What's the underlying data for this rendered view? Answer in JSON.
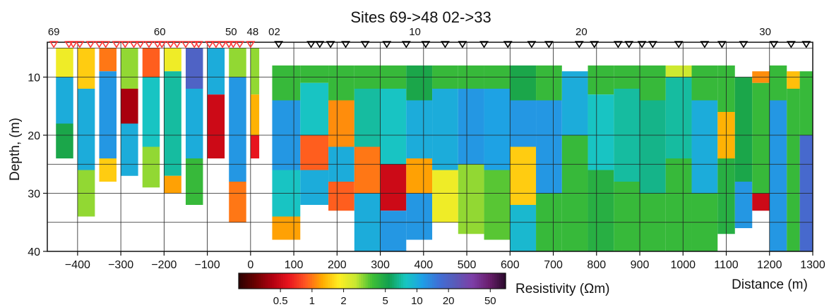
{
  "chart_data": {
    "type": "heatmap",
    "title": "Sites 69->48 02->33",
    "xlabel": "Distance (m)",
    "ylabel": "Depth, (m)",
    "xlim": [
      -470,
      1300
    ],
    "ylim": [
      4,
      40
    ],
    "x_ticks": [
      -400,
      -300,
      -200,
      -100,
      0,
      100,
      200,
      300,
      400,
      500,
      600,
      700,
      800,
      900,
      1000,
      1100,
      1200,
      1300
    ],
    "y_ticks": [
      10,
      20,
      30,
      40
    ],
    "h_gridlines": [
      5,
      25,
      35
    ],
    "colorbar": {
      "label": "Resistivity (Ωm)",
      "scale": "log",
      "range": [
        0.2,
        70
      ],
      "ticks": [
        0.5,
        1,
        2,
        5,
        10,
        20,
        50
      ],
      "colors": [
        "#2a0000",
        "#6b0000",
        "#b00010",
        "#e8141e",
        "#ff5522",
        "#ffaa00",
        "#ffee22",
        "#c8e832",
        "#3fbf35",
        "#12a050",
        "#17c7c0",
        "#1ea0e6",
        "#3f6fd6",
        "#5a5ab8",
        "#7d3fa8",
        "#6a1f6e",
        "#2a0a2a"
      ]
    },
    "site_groups": [
      {
        "name": "Sites 69->48",
        "marker_color": "#ff3a3a",
        "labels": [
          {
            "text": "69",
            "x": -455
          },
          {
            "text": "60",
            "x": -210
          },
          {
            "text": "50",
            "x": -45
          },
          {
            "text": "48",
            "x": 5
          }
        ],
        "x_positions": [
          -455,
          -420,
          -410,
          -395,
          -370,
          -350,
          -335,
          -310,
          -290,
          -270,
          -255,
          -235,
          -215,
          -205,
          -185,
          -170,
          -150,
          -130,
          -120,
          -95,
          -80,
          -65,
          -50,
          -40,
          -25,
          0
        ]
      },
      {
        "name": "Sites 02->33",
        "marker_color": "#000000",
        "labels": [
          {
            "text": "02",
            "x": 55
          },
          {
            "text": "10",
            "x": 380
          },
          {
            "text": "20",
            "x": 765
          },
          {
            "text": "30",
            "x": 1190
          }
        ],
        "x_positions": [
          65,
          140,
          160,
          185,
          220,
          265,
          315,
          360,
          405,
          450,
          490,
          540,
          595,
          650,
          690,
          760,
          795,
          850,
          875,
          905,
          930,
          990,
          1050,
          1090,
          1140,
          1210,
          1250,
          1285
        ]
      }
    ],
    "column_depth_ranges": [
      {
        "x": -450,
        "width": 40,
        "top": 5,
        "bottom": 24
      },
      {
        "x": -400,
        "width": 40,
        "top": 5,
        "bottom": 34
      },
      {
        "x": -350,
        "width": 40,
        "top": 5,
        "bottom": 28
      },
      {
        "x": -300,
        "width": 40,
        "top": 5,
        "bottom": 27
      },
      {
        "x": -250,
        "width": 40,
        "top": 5,
        "bottom": 29
      },
      {
        "x": -200,
        "width": 40,
        "top": 5,
        "bottom": 30
      },
      {
        "x": -150,
        "width": 40,
        "top": 5,
        "bottom": 32
      },
      {
        "x": -100,
        "width": 40,
        "top": 5,
        "bottom": 24
      },
      {
        "x": -50,
        "width": 40,
        "top": 5,
        "bottom": 35
      },
      {
        "x": 0,
        "width": 20,
        "top": 5,
        "bottom": 24
      },
      {
        "x": 50,
        "width": 65,
        "top": 8,
        "bottom": 38
      },
      {
        "x": 115,
        "width": 65,
        "top": 8,
        "bottom": 32
      },
      {
        "x": 180,
        "width": 60,
        "top": 8,
        "bottom": 33
      },
      {
        "x": 240,
        "width": 60,
        "top": 8,
        "bottom": 40
      },
      {
        "x": 300,
        "width": 60,
        "top": 8,
        "bottom": 40
      },
      {
        "x": 360,
        "width": 60,
        "top": 8,
        "bottom": 38
      },
      {
        "x": 420,
        "width": 60,
        "top": 8,
        "bottom": 35
      },
      {
        "x": 480,
        "width": 60,
        "top": 8,
        "bottom": 37
      },
      {
        "x": 540,
        "width": 60,
        "top": 8,
        "bottom": 38
      },
      {
        "x": 600,
        "width": 60,
        "top": 8,
        "bottom": 40
      },
      {
        "x": 660,
        "width": 60,
        "top": 8,
        "bottom": 40
      },
      {
        "x": 720,
        "width": 60,
        "top": 9,
        "bottom": 40
      },
      {
        "x": 780,
        "width": 60,
        "top": 8,
        "bottom": 40
      },
      {
        "x": 840,
        "width": 60,
        "top": 8,
        "bottom": 40
      },
      {
        "x": 900,
        "width": 60,
        "top": 8,
        "bottom": 40
      },
      {
        "x": 960,
        "width": 60,
        "top": 8,
        "bottom": 40
      },
      {
        "x": 1020,
        "width": 60,
        "top": 8,
        "bottom": 40
      },
      {
        "x": 1080,
        "width": 40,
        "top": 8,
        "bottom": 37
      },
      {
        "x": 1120,
        "width": 40,
        "top": 10,
        "bottom": 36
      },
      {
        "x": 1160,
        "width": 40,
        "top": 9,
        "bottom": 33
      },
      {
        "x": 1200,
        "width": 40,
        "top": 8,
        "bottom": 40
      },
      {
        "x": 1240,
        "width": 30,
        "top": 9,
        "bottom": 40
      },
      {
        "x": 1270,
        "width": 30,
        "top": 9,
        "bottom": 40
      }
    ],
    "cells": [
      [
        -450,
        40,
        5,
        10,
        2
      ],
      [
        -450,
        40,
        10,
        18,
        10
      ],
      [
        -450,
        40,
        18,
        24,
        5
      ],
      [
        -400,
        40,
        5,
        12,
        1.5
      ],
      [
        -400,
        40,
        12,
        26,
        10
      ],
      [
        -400,
        40,
        26,
        34,
        3
      ],
      [
        -350,
        40,
        5,
        9,
        1
      ],
      [
        -350,
        40,
        9,
        24,
        12
      ],
      [
        -350,
        40,
        24,
        28,
        1.5
      ],
      [
        -300,
        40,
        5,
        12,
        3
      ],
      [
        -300,
        40,
        12,
        18,
        0.4
      ],
      [
        -300,
        40,
        18,
        27,
        10
      ],
      [
        -250,
        40,
        5,
        10,
        0.9
      ],
      [
        -250,
        40,
        10,
        22,
        8
      ],
      [
        -250,
        40,
        22,
        29,
        3
      ],
      [
        -200,
        40,
        5,
        9,
        2
      ],
      [
        -200,
        40,
        9,
        27,
        7
      ],
      [
        -200,
        40,
        27,
        30,
        1.2
      ],
      [
        -150,
        40,
        5,
        12,
        20
      ],
      [
        -150,
        40,
        12,
        24,
        10
      ],
      [
        -150,
        40,
        24,
        32,
        4
      ],
      [
        -100,
        40,
        5,
        13,
        10
      ],
      [
        -100,
        40,
        13,
        24,
        0.5
      ],
      [
        -50,
        40,
        5,
        10,
        3
      ],
      [
        -50,
        40,
        10,
        28,
        12
      ],
      [
        -50,
        40,
        28,
        35,
        1
      ],
      [
        0,
        20,
        5,
        13,
        3
      ],
      [
        0,
        20,
        13,
        20,
        1.3
      ],
      [
        0,
        20,
        20,
        24,
        0.6
      ],
      [
        50,
        65,
        8,
        14,
        4
      ],
      [
        50,
        65,
        14,
        26,
        12
      ],
      [
        50,
        65,
        26,
        34,
        8
      ],
      [
        50,
        65,
        34,
        38,
        1.2
      ],
      [
        115,
        65,
        8,
        11,
        4
      ],
      [
        115,
        65,
        11,
        20,
        8
      ],
      [
        115,
        65,
        20,
        26,
        0.9
      ],
      [
        115,
        65,
        26,
        32,
        10
      ],
      [
        180,
        60,
        8,
        14,
        4
      ],
      [
        180,
        60,
        14,
        22,
        1.1
      ],
      [
        180,
        60,
        22,
        28,
        10
      ],
      [
        180,
        60,
        28,
        33,
        0.9
      ],
      [
        240,
        60,
        8,
        12,
        4
      ],
      [
        240,
        60,
        12,
        22,
        7
      ],
      [
        240,
        60,
        22,
        30,
        1
      ],
      [
        240,
        60,
        30,
        40,
        10
      ],
      [
        300,
        60,
        8,
        12,
        4
      ],
      [
        300,
        60,
        12,
        25,
        8
      ],
      [
        300,
        60,
        25,
        33,
        0.5
      ],
      [
        300,
        60,
        33,
        40,
        12
      ],
      [
        360,
        60,
        8,
        14,
        5
      ],
      [
        360,
        60,
        14,
        24,
        10
      ],
      [
        360,
        60,
        24,
        30,
        1.2
      ],
      [
        360,
        60,
        30,
        38,
        12
      ],
      [
        420,
        60,
        8,
        12,
        4
      ],
      [
        420,
        60,
        12,
        26,
        10
      ],
      [
        420,
        60,
        26,
        35,
        2
      ],
      [
        480,
        60,
        8,
        12,
        4
      ],
      [
        480,
        60,
        12,
        25,
        12
      ],
      [
        480,
        60,
        25,
        37,
        3
      ],
      [
        540,
        60,
        8,
        12,
        4
      ],
      [
        540,
        60,
        12,
        26,
        11
      ],
      [
        540,
        60,
        26,
        38,
        3.5
      ],
      [
        600,
        60,
        8,
        14,
        5
      ],
      [
        600,
        60,
        14,
        22,
        12
      ],
      [
        600,
        60,
        22,
        32,
        1.5
      ],
      [
        600,
        60,
        32,
        40,
        9
      ],
      [
        660,
        60,
        8,
        14,
        4
      ],
      [
        660,
        60,
        14,
        30,
        12
      ],
      [
        660,
        60,
        30,
        40,
        4
      ],
      [
        720,
        60,
        9,
        20,
        10
      ],
      [
        720,
        60,
        20,
        40,
        4
      ],
      [
        780,
        60,
        8,
        13,
        4
      ],
      [
        780,
        60,
        13,
        26,
        8
      ],
      [
        780,
        60,
        26,
        40,
        4.5
      ],
      [
        840,
        60,
        8,
        12,
        4
      ],
      [
        840,
        60,
        12,
        28,
        7
      ],
      [
        840,
        60,
        28,
        40,
        4
      ],
      [
        900,
        60,
        8,
        14,
        4
      ],
      [
        900,
        60,
        14,
        30,
        6.5
      ],
      [
        900,
        60,
        30,
        40,
        4
      ],
      [
        960,
        60,
        8,
        10,
        2.5
      ],
      [
        960,
        60,
        10,
        24,
        7
      ],
      [
        960,
        60,
        24,
        40,
        4
      ],
      [
        1020,
        60,
        8,
        14,
        4
      ],
      [
        1020,
        60,
        14,
        30,
        10
      ],
      [
        1020,
        60,
        30,
        40,
        4
      ],
      [
        1080,
        40,
        8,
        16,
        4
      ],
      [
        1080,
        40,
        16,
        24,
        1.3
      ],
      [
        1080,
        40,
        24,
        37,
        4.5
      ],
      [
        1120,
        40,
        10,
        28,
        5
      ],
      [
        1120,
        40,
        28,
        36,
        12
      ],
      [
        1160,
        40,
        9,
        11,
        1.1
      ],
      [
        1160,
        40,
        11,
        30,
        4
      ],
      [
        1160,
        40,
        30,
        33,
        0.5
      ],
      [
        1200,
        40,
        8,
        14,
        4
      ],
      [
        1200,
        40,
        14,
        40,
        12
      ],
      [
        1240,
        30,
        9,
        12,
        1.4
      ],
      [
        1240,
        30,
        12,
        40,
        4
      ],
      [
        1270,
        30,
        9,
        20,
        4
      ],
      [
        1270,
        30,
        20,
        40,
        18
      ]
    ]
  }
}
